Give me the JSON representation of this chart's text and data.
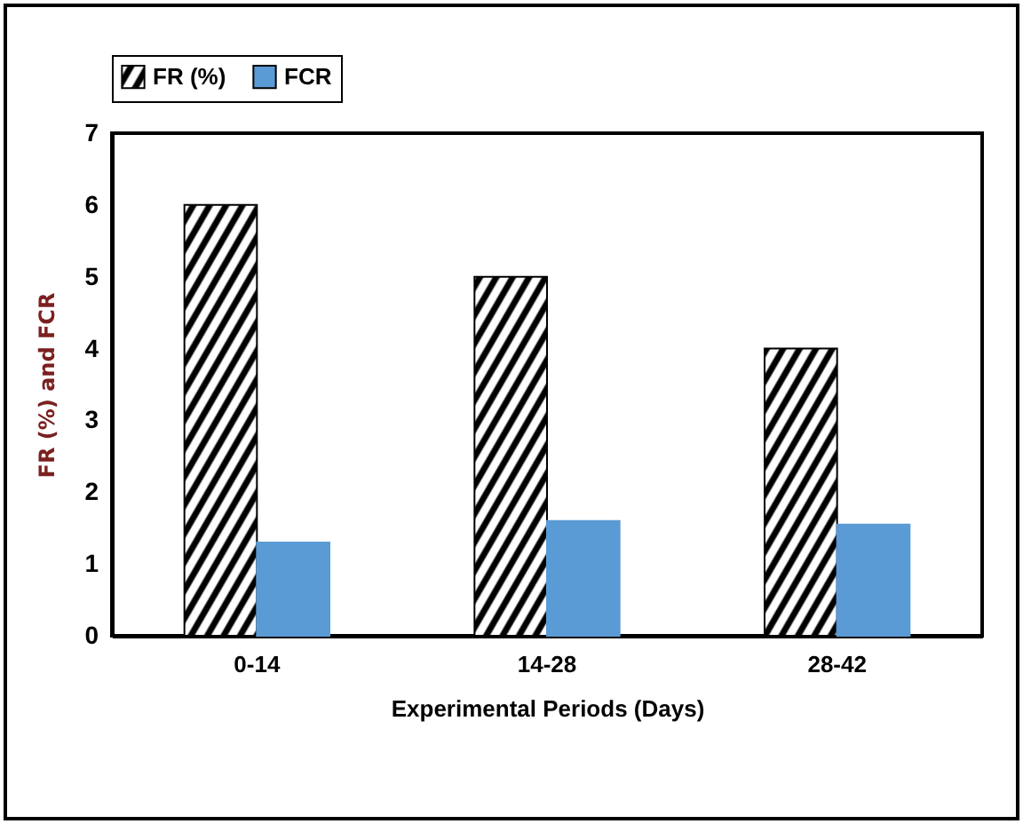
{
  "chart_data": {
    "type": "bar",
    "xlabel": "Experimental Periods (Days)",
    "ylabel": "FR (%) and FCR",
    "categories": [
      "0-14",
      "14-28",
      "28-42"
    ],
    "series": [
      {
        "name": "FR (%)",
        "color": "#000000",
        "values": [
          6,
          5,
          4
        ]
      },
      {
        "name": "FCR",
        "color": "#5b9bd5",
        "values": [
          1.3,
          1.6,
          1.55
        ]
      }
    ],
    "ylim": [
      0,
      7
    ],
    "yticks": [
      0,
      1,
      2,
      3,
      4,
      5,
      6,
      7
    ],
    "grid": false,
    "legend": "top"
  }
}
